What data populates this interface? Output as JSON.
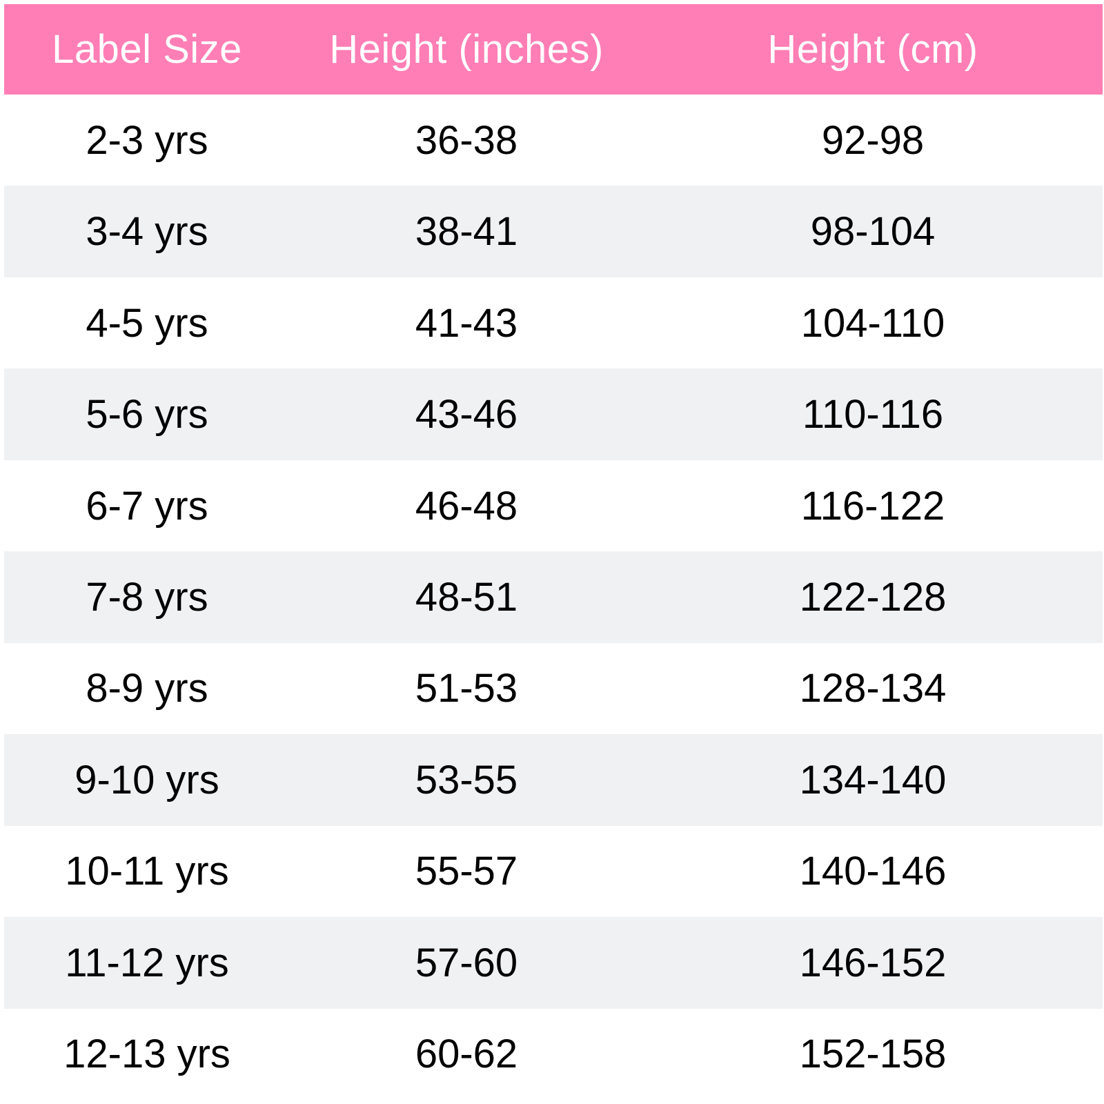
{
  "colors": {
    "header_bg": "#ff7eb5",
    "row_even_bg": "#ffffff",
    "row_odd_bg": "#f0f1f3",
    "header_text": "#ffffff",
    "body_text": "#000000"
  },
  "headers": [
    "Label Size",
    "Height (inches)",
    "Height (cm)"
  ],
  "rows": [
    [
      "2-3 yrs",
      "36-38",
      "92-98"
    ],
    [
      "3-4 yrs",
      "38-41",
      "98-104"
    ],
    [
      "4-5 yrs",
      "41-43",
      "104-110"
    ],
    [
      "5-6 yrs",
      "43-46",
      "110-116"
    ],
    [
      "6-7 yrs",
      "46-48",
      "116-122"
    ],
    [
      "7-8 yrs",
      "48-51",
      "122-128"
    ],
    [
      "8-9 yrs",
      "51-53",
      "128-134"
    ],
    [
      "9-10 yrs",
      "53-55",
      "134-140"
    ],
    [
      "10-11 yrs",
      "55-57",
      "140-146"
    ],
    [
      "11-12 yrs",
      "57-60",
      "146-152"
    ],
    [
      "12-13 yrs",
      "60-62",
      "152-158"
    ]
  ]
}
